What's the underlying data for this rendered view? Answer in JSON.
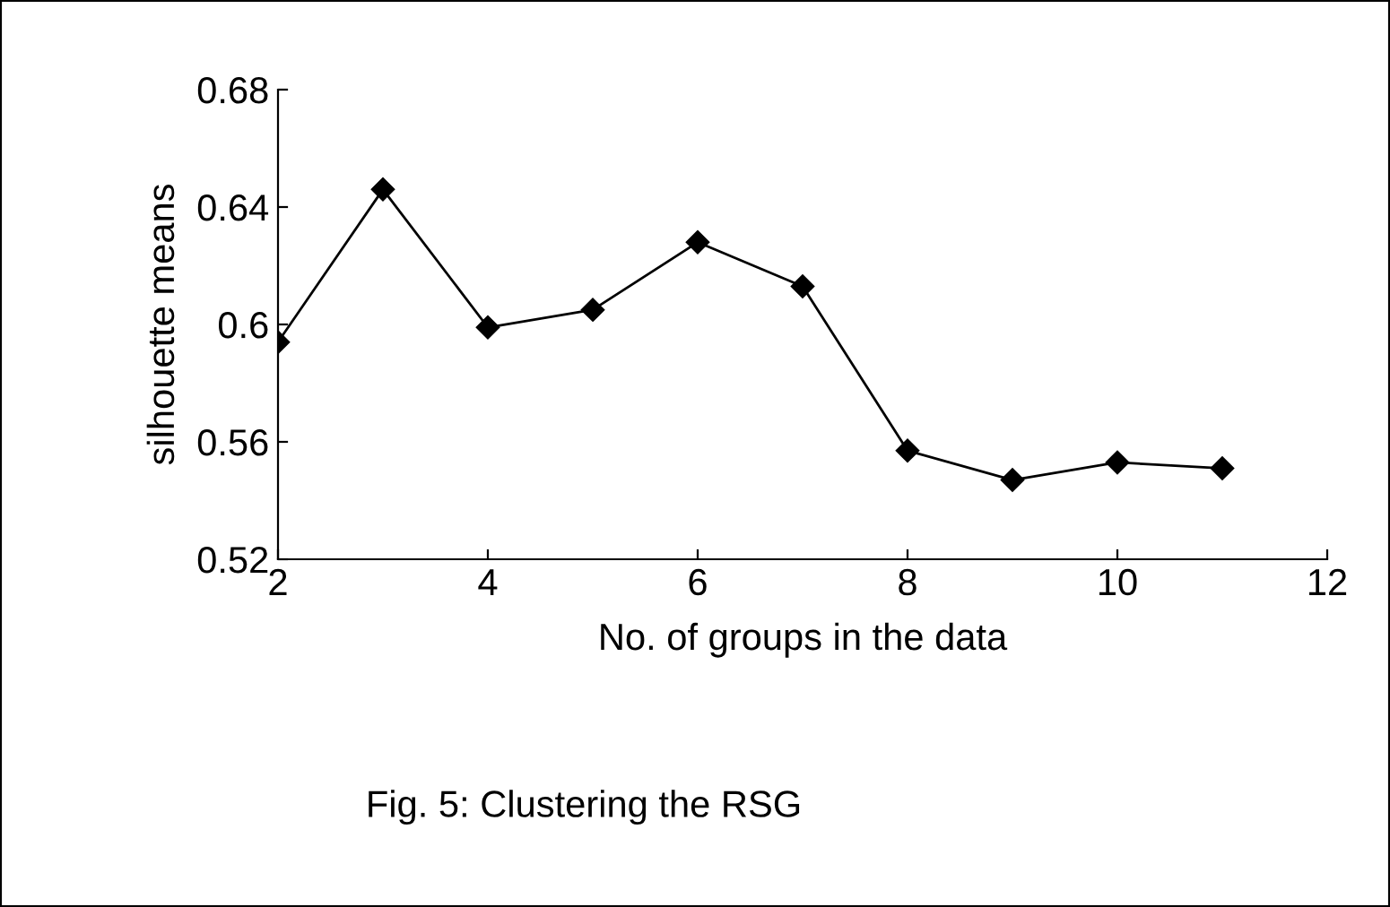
{
  "chart_data": {
    "type": "line",
    "xlabel": "No. of groups in the data",
    "ylabel": "silhouette means",
    "x": [
      2,
      3,
      4,
      5,
      6,
      7,
      8,
      9,
      10,
      11
    ],
    "series": [
      {
        "color": "#000000",
        "values": [
          0.594,
          0.646,
          0.599,
          0.605,
          0.628,
          0.613,
          0.557,
          0.547,
          0.553,
          0.551
        ]
      }
    ],
    "xlim": [
      2,
      12
    ],
    "xticks": [
      2,
      4,
      6,
      8,
      10,
      12
    ],
    "ylim": [
      0.52,
      0.68
    ],
    "yticks": [
      0.52,
      0.56,
      0.6,
      0.64,
      0.68
    ],
    "marker": "diamond",
    "line_style": "solid",
    "grid": false,
    "annotations": [
      "Fig. 5: Clustering the RSG"
    ]
  }
}
